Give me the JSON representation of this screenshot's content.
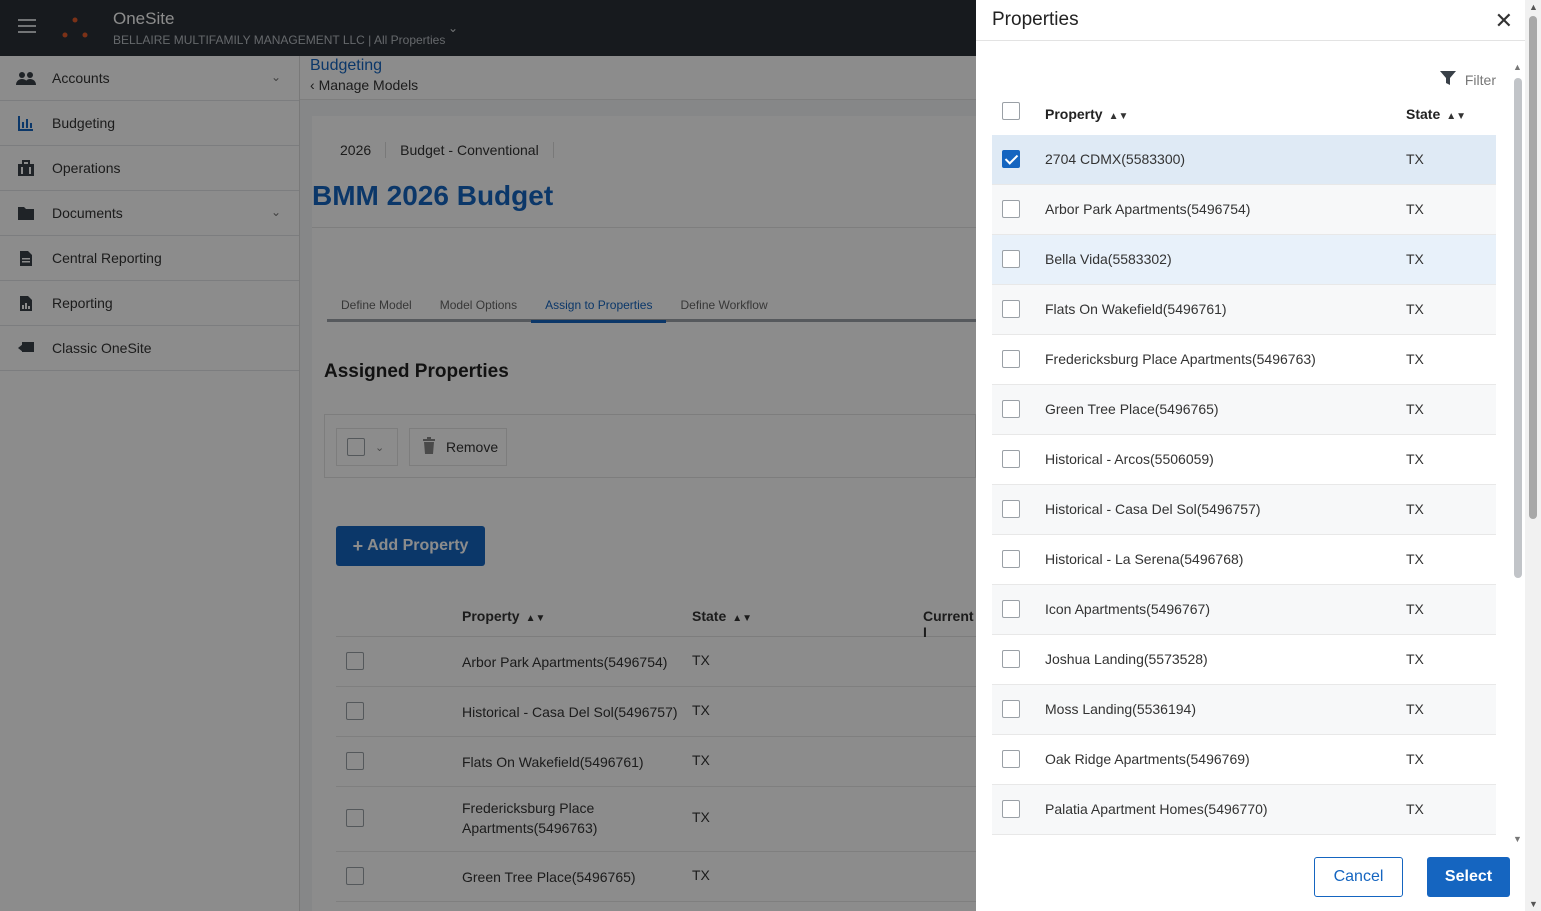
{
  "topbar": {
    "app_name": "OneSite",
    "company": "BELLAIRE MULTIFAMILY MANAGEMENT LLC | All Properties"
  },
  "sidebar": {
    "items": [
      {
        "label": "Accounts",
        "icon": "users-icon",
        "has_chevron": true
      },
      {
        "label": "Budgeting",
        "icon": "bar-chart-icon",
        "has_chevron": false
      },
      {
        "label": "Operations",
        "icon": "building-icon",
        "has_chevron": false
      },
      {
        "label": "Documents",
        "icon": "folder-icon",
        "has_chevron": true
      },
      {
        "label": "Central Reporting",
        "icon": "document-icon",
        "has_chevron": false
      },
      {
        "label": "Reporting",
        "icon": "report-icon",
        "has_chevron": false
      },
      {
        "label": "Classic OneSite",
        "icon": "classic-icon",
        "has_chevron": false
      }
    ]
  },
  "main": {
    "breadcrumb": "Budgeting",
    "back_label": "Manage Models",
    "year": "2026",
    "model_type": "Budget - Conventional",
    "title": "BMM 2026 Budget",
    "tabs": [
      {
        "label": "Define Model",
        "active": false
      },
      {
        "label": "Model Options",
        "active": false
      },
      {
        "label": "Assign to Properties",
        "active": true
      },
      {
        "label": "Define Workflow",
        "active": false
      }
    ],
    "section_title": "Assigned Properties",
    "remove_label": "Remove",
    "add_property_label": "Add Property",
    "table": {
      "columns": [
        "Property",
        "State",
        "Current I"
      ],
      "rows": [
        {
          "property": "Arbor Park Apartments(5496754)",
          "state": "TX"
        },
        {
          "property": "Historical - Casa Del Sol(5496757)",
          "state": "TX"
        },
        {
          "property": "Flats On Wakefield(5496761)",
          "state": "TX"
        },
        {
          "property": "Fredericksburg Place Apartments(5496763)",
          "state": "TX"
        },
        {
          "property": "Green Tree Place(5496765)",
          "state": "TX"
        }
      ]
    }
  },
  "panel": {
    "title": "Properties",
    "filter_label": "Filter",
    "columns": {
      "property": "Property",
      "state": "State"
    },
    "rows": [
      {
        "property": "2704 CDMX(5583300)",
        "state": "TX",
        "checked": true
      },
      {
        "property": "Arbor Park Apartments(5496754)",
        "state": "TX",
        "checked": false
      },
      {
        "property": "Bella Vida(5583302)",
        "state": "TX",
        "checked": false
      },
      {
        "property": "Flats On Wakefield(5496761)",
        "state": "TX",
        "checked": false
      },
      {
        "property": "Fredericksburg Place Apartments(5496763)",
        "state": "TX",
        "checked": false
      },
      {
        "property": "Green Tree Place(5496765)",
        "state": "TX",
        "checked": false
      },
      {
        "property": "Historical - Arcos(5506059)",
        "state": "TX",
        "checked": false
      },
      {
        "property": "Historical - Casa Del Sol(5496757)",
        "state": "TX",
        "checked": false
      },
      {
        "property": "Historical - La Serena(5496768)",
        "state": "TX",
        "checked": false
      },
      {
        "property": "Icon Apartments(5496767)",
        "state": "TX",
        "checked": false
      },
      {
        "property": "Joshua Landing(5573528)",
        "state": "TX",
        "checked": false
      },
      {
        "property": "Moss Landing(5536194)",
        "state": "TX",
        "checked": false
      },
      {
        "property": "Oak Ridge Apartments(5496769)",
        "state": "TX",
        "checked": false
      },
      {
        "property": "Palatia Apartment Homes(5496770)",
        "state": "TX",
        "checked": false
      }
    ],
    "cancel_label": "Cancel",
    "select_label": "Select"
  },
  "colors": {
    "accent": "#1565c0",
    "topbar": "#2b3138",
    "logo_dot": "#e05a2b"
  }
}
